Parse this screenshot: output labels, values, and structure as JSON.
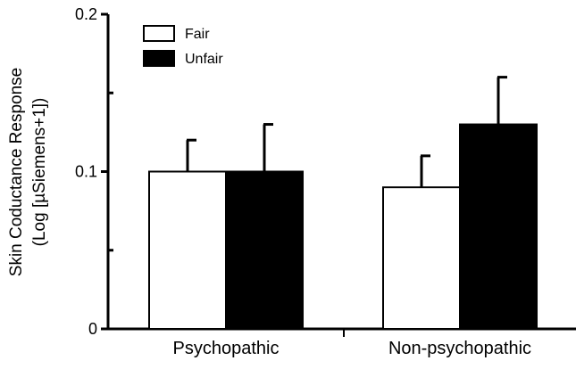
{
  "chart_data": {
    "type": "bar",
    "title": "",
    "categories": [
      "Psychopathic",
      "Non-psychopathic"
    ],
    "series": [
      {
        "name": "Fair",
        "values": [
          0.1,
          0.09
        ],
        "error": [
          0.02,
          0.02
        ],
        "fill": "#ffffff",
        "stroke": "#000000"
      },
      {
        "name": "Unfair",
        "values": [
          0.1,
          0.13
        ],
        "error": [
          0.03,
          0.03
        ],
        "fill": "#000000",
        "stroke": "#000000"
      }
    ],
    "ylabel_lines": [
      "Skin Coductance Response",
      "(Log [µSiemens+1])"
    ],
    "xlabel": "",
    "ylim": [
      0,
      0.2
    ],
    "yticks": [
      {
        "value": 0,
        "label": "0"
      },
      {
        "value": 0.1,
        "label": "0.1"
      },
      {
        "value": 0.2,
        "label": "0.2"
      }
    ],
    "minor_yticks": [
      0.05,
      0.15
    ],
    "grid": false,
    "legend_position": "top-left"
  }
}
